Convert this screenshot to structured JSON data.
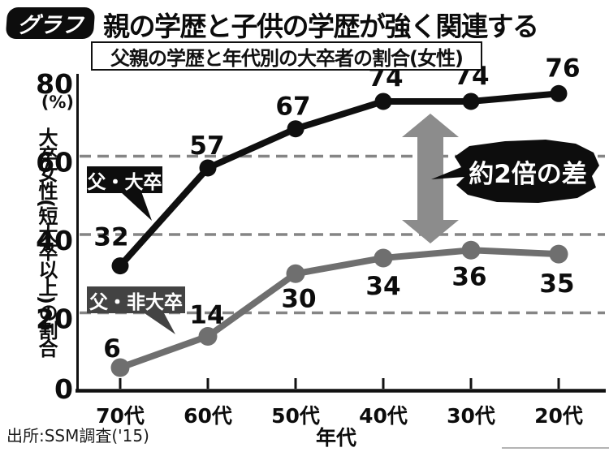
{
  "header": {
    "badge": "グラフ",
    "title": "親の学歴と子供の学歴が強く関連する",
    "subtitle": "父親の学歴と年代別の大卒者の割合(女性)"
  },
  "chart_data": {
    "type": "line",
    "title": "父親の学歴と年代別の大卒者の割合(女性)",
    "categories": [
      "70代",
      "60代",
      "50代",
      "40代",
      "30代",
      "20代"
    ],
    "series": [
      {
        "name": "父・大卒",
        "values": [
          32,
          57,
          67,
          74,
          74,
          76
        ],
        "color": "#0f0f0f"
      },
      {
        "name": "父・非大卒",
        "values": [
          6,
          14,
          30,
          34,
          36,
          35
        ],
        "color": "#6f6f6f"
      }
    ],
    "xlabel": "年代",
    "ylabel": "大卒女性(短大卒以上)の割合",
    "y_unit": "(%)",
    "ylim": [
      0,
      80
    ],
    "yticks": [
      0,
      20,
      40,
      60,
      80
    ],
    "gridlines": [
      20,
      40,
      60
    ],
    "grid": "dashed",
    "legend_position": "inline-callouts",
    "annotation": "約2倍の差"
  },
  "footer": {
    "source": "出所:SSM調査('15)"
  },
  "colors": {
    "line_dark": "#0f0f0f",
    "line_gray": "#6f6f6f",
    "callout_gray_bg": "#434343",
    "arrow_gray": "#8c8c8c",
    "gridline_gray": "#858585",
    "bubble_bg": "#0d0d0d"
  }
}
